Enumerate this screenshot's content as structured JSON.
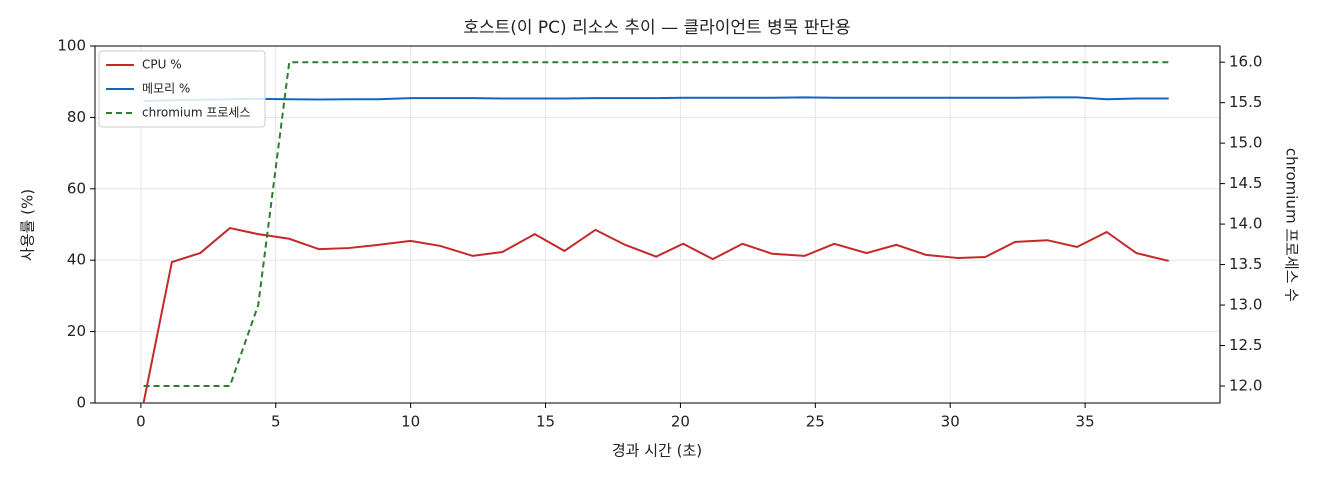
{
  "chart_data": {
    "type": "line",
    "title": "호스트(이 PC) 리소스 추이 — 클라이언트 병목 판단용",
    "x_label": "경과 시간 (초)",
    "y_label": "사용률 (%)",
    "y2_label": "chromium 프로세스 수",
    "x": [
      0.1,
      1.15,
      2.2,
      3.3,
      4.35,
      5.5,
      6.6,
      7.7,
      8.8,
      10,
      11.1,
      12.3,
      13.4,
      14.6,
      15.7,
      16.85,
      17.95,
      19.1,
      20.1,
      21.2,
      22.3,
      23.4,
      24.6,
      25.7,
      26.9,
      28,
      29.1,
      30.3,
      31.3,
      32.4,
      33.6,
      34.7,
      35.8,
      36.9,
      38.1
    ],
    "series": [
      {
        "name": "CPU %",
        "color": "#c62828",
        "dash": false,
        "values": [
          0,
          39.5,
          42,
          49,
          47.3,
          46,
          43.1,
          43.4,
          44.3,
          45.4,
          44,
          41.2,
          42.3,
          47.3,
          42.6,
          48.5,
          44.3,
          41,
          44.6,
          40.3,
          44.6,
          41.8,
          41.2,
          44.6,
          42,
          44.3,
          41.5,
          40.6,
          40.9,
          45.1,
          45.6,
          43.7,
          47.9,
          42,
          39.8
        ]
      },
      {
        "name": "메모리 %",
        "color": "#1565c0",
        "dash": false,
        "values": [
          84.6,
          84.8,
          84.9,
          85.1,
          85.2,
          85.1,
          85.0,
          85.1,
          85.1,
          85.4,
          85.4,
          85.4,
          85.3,
          85.3,
          85.3,
          85.4,
          85.4,
          85.4,
          85.5,
          85.5,
          85.5,
          85.5,
          85.6,
          85.5,
          85.5,
          85.5,
          85.5,
          85.5,
          85.5,
          85.5,
          85.6,
          85.6,
          85.1,
          85.3,
          85.3
        ]
      },
      {
        "name": "chromium 프로세스",
        "color": "#2e7d32",
        "dash": true,
        "axis": "y2",
        "values": [
          12,
          12,
          12,
          12,
          13,
          16,
          16,
          16,
          16,
          16,
          16,
          16,
          16,
          16,
          16,
          16,
          16,
          16,
          16,
          16,
          16,
          16,
          16,
          16,
          16,
          16,
          16,
          16,
          16,
          16,
          16,
          16,
          16,
          16,
          16
        ]
      }
    ],
    "xlim": [
      -1.7,
      40
    ],
    "xticks": [
      0,
      5,
      10,
      15,
      20,
      25,
      30,
      35
    ],
    "ylim": [
      0,
      100
    ],
    "yticks": [
      0,
      20,
      40,
      60,
      80,
      100
    ],
    "y2lim": [
      11.79,
      16.2
    ],
    "y2ticks": [
      {
        "value": 12,
        "label": "12.0"
      },
      {
        "value": 12.5,
        "label": "12.5"
      },
      {
        "value": 13,
        "label": "13.0"
      },
      {
        "value": 13.5,
        "label": "13.5"
      },
      {
        "value": 14,
        "label": "14.0"
      },
      {
        "value": 14.5,
        "label": "14.5"
      },
      {
        "value": 15,
        "label": "15.0"
      },
      {
        "value": 15.5,
        "label": "15.5"
      },
      {
        "value": 16,
        "label": "16.0"
      }
    ],
    "grid": true,
    "legend": "upper-left"
  }
}
